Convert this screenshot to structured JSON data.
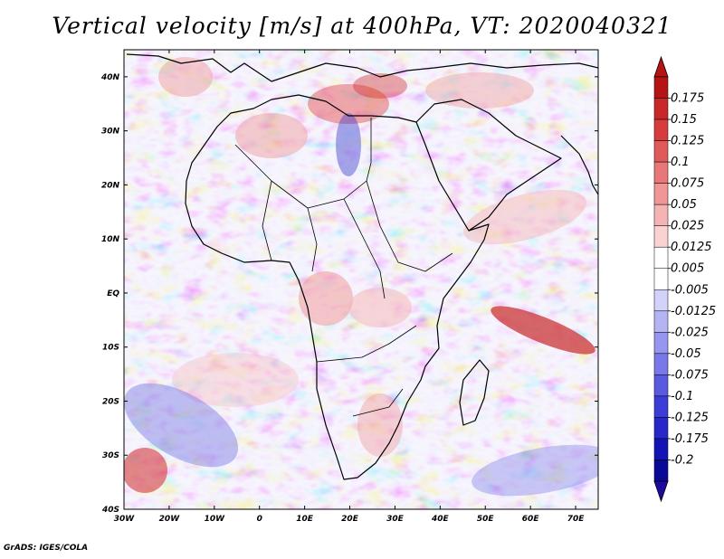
{
  "title": "Vertical velocity [m/s] at 400hPa, VT: 2020040321",
  "footer": "GrADS: IGES/COLA",
  "map": {
    "lon_range": [
      -30,
      75
    ],
    "lat_range": [
      -40,
      45
    ],
    "lon_ticks": [
      "30W",
      "20W",
      "10W",
      "0",
      "10E",
      "20E",
      "30E",
      "40E",
      "50E",
      "60E",
      "70E"
    ],
    "lat_ticks": [
      "40N",
      "30N",
      "20N",
      "10N",
      "EQ",
      "10S",
      "20S",
      "30S",
      "40S"
    ]
  },
  "colorbar": {
    "levels": [
      "0.175",
      "0.15",
      "0.125",
      "0.1",
      "0.075",
      "0.05",
      "0.025",
      "0.0125",
      "0.005",
      "-0.005",
      "-0.0125",
      "-0.025",
      "-0.05",
      "-0.075",
      "-0.1",
      "-0.125",
      "-0.175",
      "-0.2"
    ],
    "colors": [
      "#b41414",
      "#c82828",
      "#d73c3c",
      "#e15a5a",
      "#e87878",
      "#f09696",
      "#f5b4b4",
      "#fad2d2",
      "#ffffff",
      "#ffffff",
      "#d2d2fa",
      "#b4b4f5",
      "#9696f0",
      "#7878e8",
      "#5a5ae1",
      "#3c3cd7",
      "#2828c8",
      "#1414b4",
      "#0a0a96"
    ],
    "top_arrow_color": "#b41414",
    "bottom_arrow_color": "#1e0a9e"
  }
}
